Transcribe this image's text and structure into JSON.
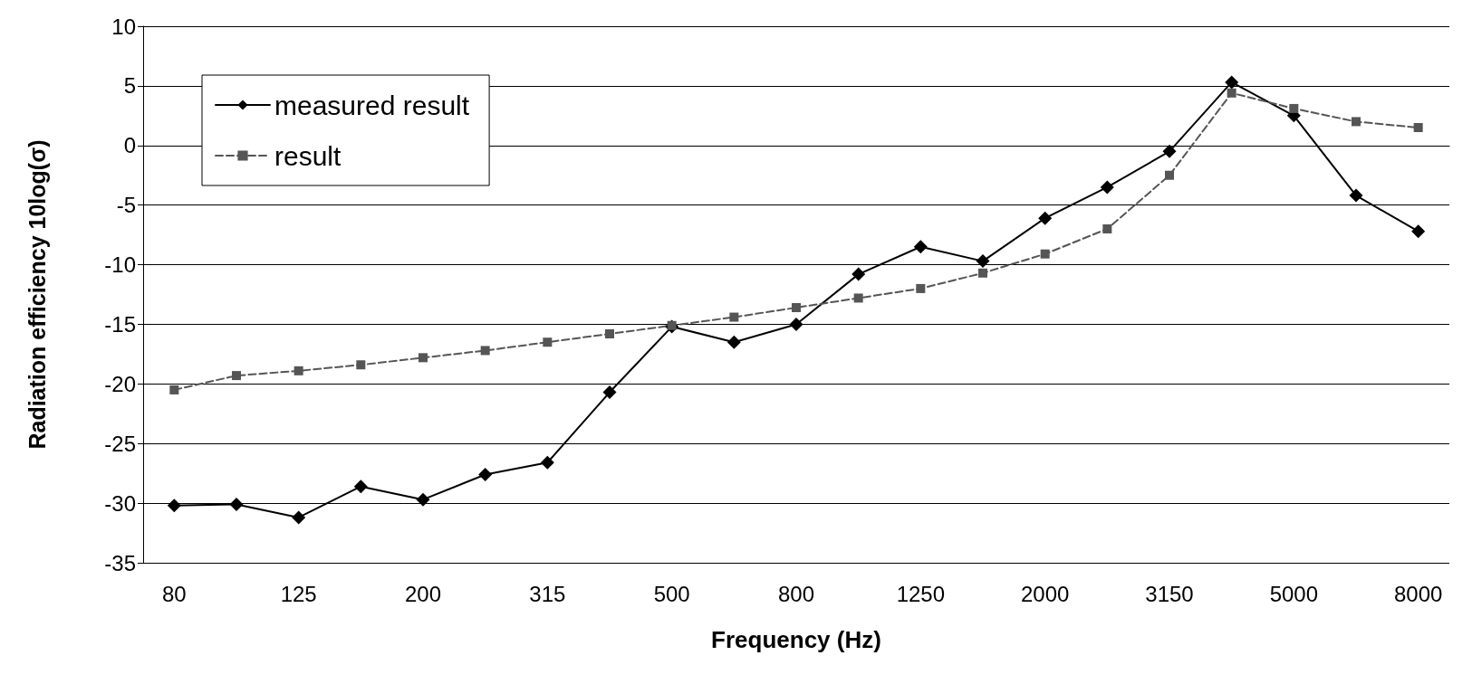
{
  "chart_data": {
    "type": "line",
    "xlabel": "Frequency (Hz)",
    "ylabel": "Radiation efficiency 10log(σ)",
    "categories": [
      "80",
      null,
      "125",
      null,
      "200",
      null,
      "315",
      null,
      "500",
      null,
      "800",
      null,
      "1250",
      null,
      "2000",
      null,
      "3150",
      null,
      "5000",
      null,
      "8000"
    ],
    "series": [
      {
        "name": "measured result",
        "color": "#000000",
        "marker": "diamond",
        "line_style": "solid",
        "values": [
          -30.2,
          -30.1,
          -31.2,
          -28.6,
          -29.7,
          -27.6,
          -26.6,
          -20.7,
          -15.2,
          -16.5,
          -15.0,
          -10.8,
          -8.5,
          -9.7,
          -6.1,
          -3.5,
          -0.5,
          5.3,
          2.5,
          -4.2,
          -7.2
        ]
      },
      {
        "name": "result",
        "color": "#555555",
        "marker": "square",
        "line_style": "dashed",
        "values": [
          -20.5,
          -19.3,
          -18.9,
          -18.4,
          -17.8,
          -17.2,
          -16.5,
          -15.8,
          -15.1,
          -14.4,
          -13.6,
          -12.8,
          -12.0,
          -10.7,
          -9.1,
          -7.0,
          -2.5,
          4.4,
          3.1,
          2.0,
          1.5
        ]
      }
    ],
    "ylim": [
      -35,
      10
    ],
    "yticks": [
      -35,
      -30,
      -25,
      -20,
      -15,
      -10,
      -5,
      0,
      5,
      10
    ],
    "grid": "y",
    "legend": "top left"
  }
}
